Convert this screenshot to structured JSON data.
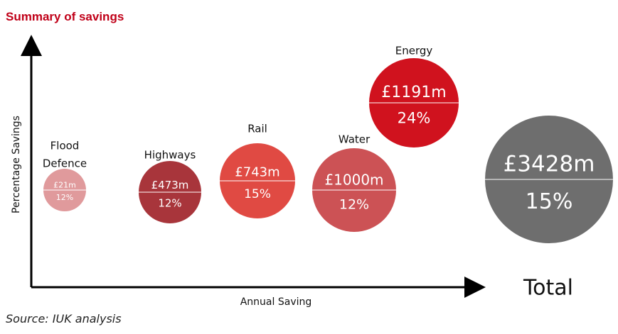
{
  "title": "Summary of savings",
  "source": "Source: IUK analysis",
  "colors": {
    "title": "#c00018"
  },
  "chart_data": {
    "type": "bubble",
    "xlabel": "Annual Saving",
    "ylabel": "Percentage Savings",
    "series": [
      {
        "name": "Flood Defence",
        "name_lines": [
          "Flood",
          "Defence"
        ],
        "value_label": "£21m",
        "saving_m": 21,
        "percent_label": "12%",
        "percent": 12,
        "color": "#e09a9c"
      },
      {
        "name": "Highways",
        "name_lines": [
          "Highways"
        ],
        "value_label": "£473m",
        "saving_m": 473,
        "percent_label": "12%",
        "percent": 12,
        "color": "#a8353b"
      },
      {
        "name": "Rail",
        "name_lines": [
          "Rail"
        ],
        "value_label": "£743m",
        "saving_m": 743,
        "percent_label": "15%",
        "percent": 15,
        "color": "#e04a43"
      },
      {
        "name": "Water",
        "name_lines": [
          "Water"
        ],
        "value_label": "£1000m",
        "saving_m": 1000,
        "percent_label": "12%",
        "percent": 12,
        "color": "#cc5255"
      },
      {
        "name": "Energy",
        "name_lines": [
          "Energy"
        ],
        "value_label": "£1191m",
        "saving_m": 1191,
        "percent_label": "24%",
        "percent": 24,
        "color": "#d0121e"
      }
    ],
    "total": {
      "name": "Total",
      "value_label": "£3428m",
      "saving_m": 3428,
      "percent_label": "15%",
      "percent": 15,
      "color": "#6e6e6e"
    }
  }
}
